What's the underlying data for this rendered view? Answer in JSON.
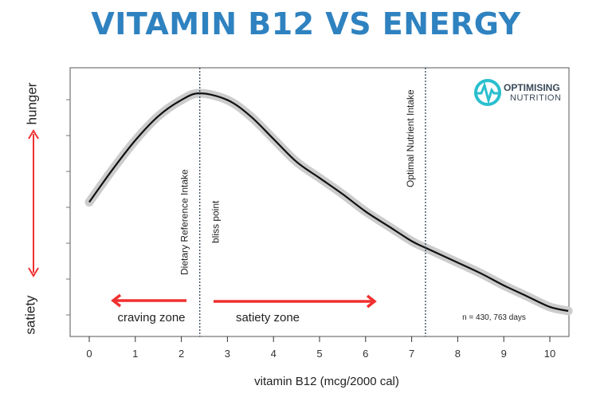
{
  "title": "VITAMIN B12 VS ENERGY",
  "logo": {
    "line1": "OPTIMISING",
    "line2": "NUTRITION",
    "color": "#2bbfcf"
  },
  "chart_data": {
    "type": "line",
    "title": "VITAMIN B12 VS ENERGY",
    "xlabel": "vitamin B12 (mcg/2000 cal)",
    "ylabel_top": "hunger",
    "ylabel_bottom": "satiety",
    "xlim": [
      -0.4,
      10.4
    ],
    "ylim": [
      0,
      100
    ],
    "xticks": [
      0,
      1,
      2,
      3,
      4,
      5,
      6,
      7,
      8,
      9,
      10
    ],
    "grid": false,
    "series": [
      {
        "x": [
          0,
          0.5,
          1,
          1.5,
          2,
          2.4,
          3,
          3.5,
          4,
          4.5,
          5,
          5.5,
          6,
          6.5,
          7,
          7.3,
          8,
          8.5,
          9,
          9.5,
          10,
          10.4
        ],
        "y": [
          50,
          62,
          73,
          82,
          88,
          90.5,
          88,
          82,
          73.5,
          65,
          59,
          53,
          46.5,
          41,
          35.5,
          33,
          27.5,
          23.5,
          19,
          15,
          11,
          9.5
        ]
      }
    ],
    "band_color": "#cccccc",
    "line_color": "#111111",
    "vlines": [
      {
        "x": 2.4,
        "label": "Dietary Reference Intake",
        "label2": "bliss point"
      },
      {
        "x": 7.3,
        "label": "Optimal Nutrient Intake"
      }
    ],
    "annotations": {
      "craving": "craving zone",
      "satiety": "satiety zone",
      "n": "n = 430, 763 days"
    },
    "arrow_color": "#f03030"
  }
}
